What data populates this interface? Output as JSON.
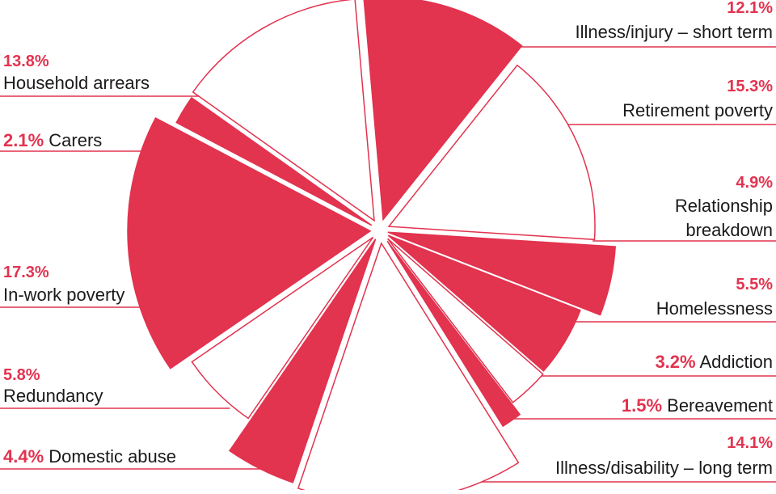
{
  "chart_data": {
    "type": "pie",
    "colors": {
      "accent": "#e2334f",
      "background": "#ffffff"
    },
    "slices": [
      {
        "label": "Illness/injury – short term",
        "value": 12.1,
        "value_label": "12.1%",
        "filled": true
      },
      {
        "label": "Retirement poverty",
        "value": 15.3,
        "value_label": "15.3%",
        "filled": false
      },
      {
        "label": "Relationship breakdown",
        "value": 4.9,
        "value_label": "4.9%",
        "filled": true,
        "label_lines": [
          "Relationship",
          "breakdown"
        ]
      },
      {
        "label": "Homelessness",
        "value": 5.5,
        "value_label": "5.5%",
        "filled": true
      },
      {
        "label": "Addiction",
        "value": 3.2,
        "value_label": "3.2%",
        "filled": false
      },
      {
        "label": "Bereavement",
        "value": 1.5,
        "value_label": "1.5%",
        "filled": true
      },
      {
        "label": "Illness/disability – long term",
        "value": 14.1,
        "value_label": "14.1%",
        "filled": false
      },
      {
        "label": "Domestic abuse",
        "value": 4.4,
        "value_label": "4.4%",
        "filled": true
      },
      {
        "label": "Redundancy",
        "value": 5.8,
        "value_label": "5.8%",
        "filled": false
      },
      {
        "label": "In-work poverty",
        "value": 17.3,
        "value_label": "17.3%",
        "filled": true
      },
      {
        "label": "Carers",
        "value": 2.1,
        "value_label": "2.1%",
        "filled": true
      },
      {
        "label": "Household arrears",
        "value": 13.8,
        "value_label": "13.8%",
        "filled": false
      }
    ]
  }
}
